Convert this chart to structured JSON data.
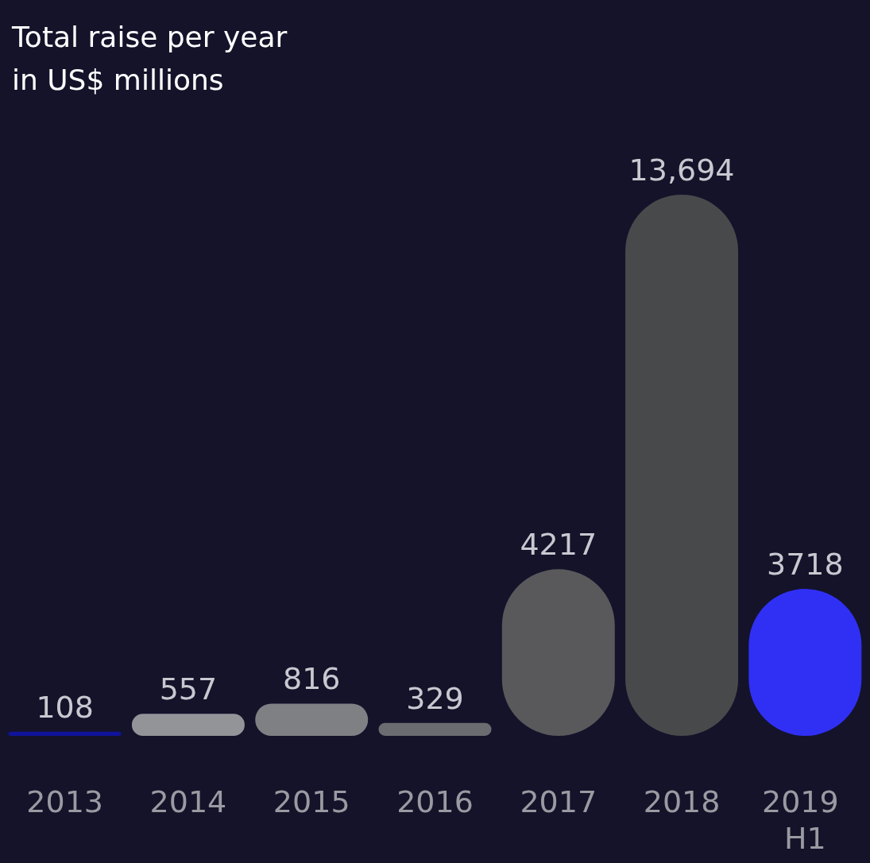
{
  "chart_data": {
    "type": "bar",
    "title": "Total raise per year\nin US$ millions",
    "categories": [
      "2013",
      "2014",
      "2015",
      "2016",
      "2017",
      "2018",
      "2019 H1"
    ],
    "values": [
      108,
      557,
      816,
      329,
      4217,
      13694,
      3718
    ],
    "colors": [
      "#10139a",
      "#939498",
      "#7f8084",
      "#6b6c70",
      "#59595b",
      "#48494b",
      "#3030f5"
    ],
    "value_labels": [
      "108",
      "557",
      "816",
      "329",
      "4217",
      "13,694",
      "3718"
    ]
  }
}
